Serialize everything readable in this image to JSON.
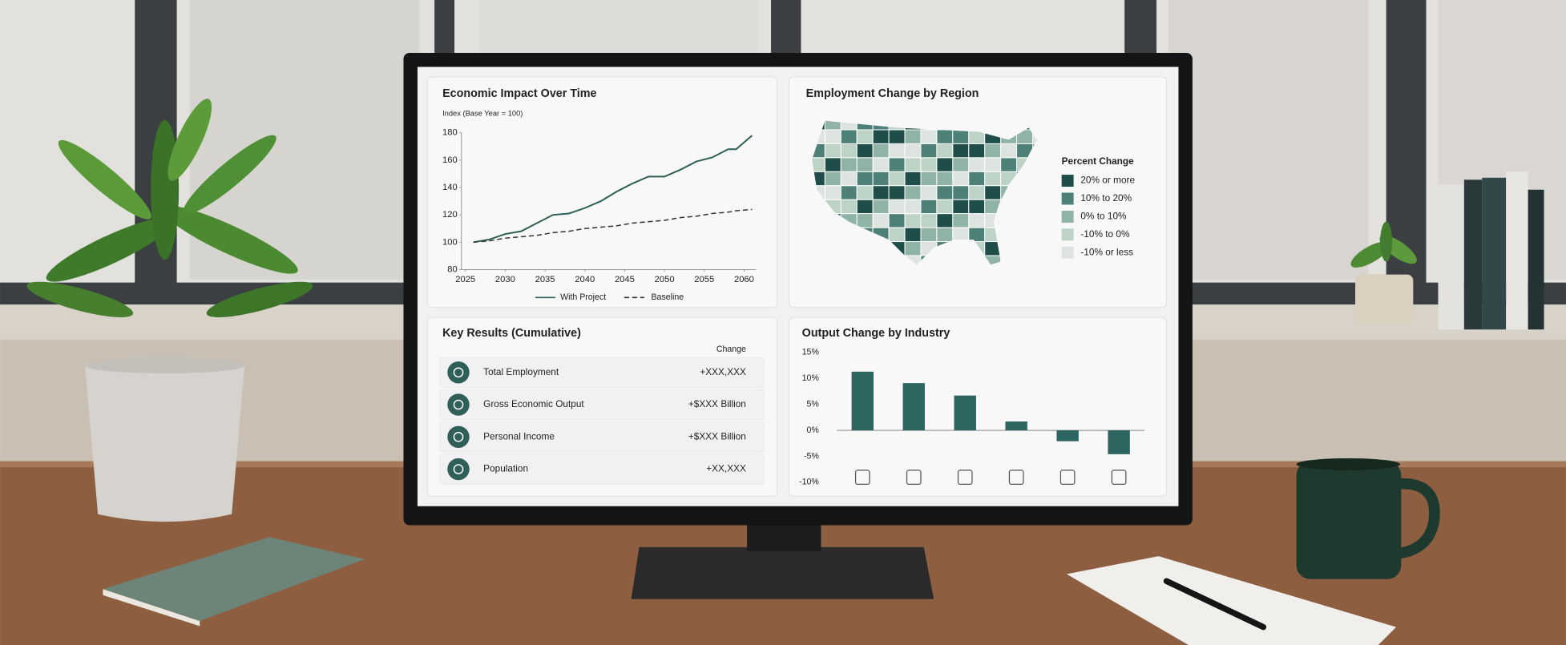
{
  "chart_data": [
    {
      "type": "line",
      "title": "Economic Impact Over Time",
      "y_label": "Index (Base Year = 100)",
      "x": [
        2026,
        2028,
        2030,
        2032,
        2034,
        2036,
        2038,
        2040,
        2042,
        2044,
        2046,
        2048,
        2050,
        2052,
        2054,
        2056,
        2058,
        2059,
        2061
      ],
      "xlim": [
        2024.5,
        2061.5
      ],
      "xticks": [
        2025,
        2030,
        2035,
        2040,
        2045,
        2050,
        2055,
        2060
      ],
      "ylim": [
        80,
        180
      ],
      "yticks": [
        80,
        100,
        120,
        140,
        160,
        180
      ],
      "series": [
        {
          "name": "With Project",
          "color": "#2e5e54",
          "style": "solid",
          "values": [
            100,
            102,
            106,
            108,
            114,
            120,
            121,
            125,
            130,
            137,
            143,
            148,
            148,
            153,
            159,
            162,
            168,
            168,
            178
          ]
        },
        {
          "name": "Baseline",
          "color": "#333333",
          "style": "dashed",
          "values": [
            100,
            101,
            103,
            104,
            105,
            107,
            108,
            110,
            111,
            112,
            114,
            115,
            116,
            118,
            119,
            121,
            122,
            123,
            124
          ]
        }
      ]
    },
    {
      "type": "bar",
      "title": "Output Change by Industry",
      "categories": [
        null,
        null,
        null,
        null,
        null,
        null
      ],
      "values": [
        11.3,
        9.1,
        6.7,
        1.7,
        -2.1,
        -4.6
      ],
      "color": "#2f6560",
      "ylim": [
        -10,
        15
      ],
      "yticks": [
        {
          "value": -10,
          "label": "-10%"
        },
        {
          "value": -5,
          "label": "-5%"
        },
        {
          "value": 0,
          "label": "0%"
        },
        {
          "value": 5,
          "label": "5%"
        },
        {
          "value": 10,
          "label": "10%"
        },
        {
          "value": 15,
          "label": "15%"
        }
      ]
    }
  ],
  "map": {
    "title": "Employment Change by Region",
    "legend_title": "Percent Change",
    "legend": [
      {
        "label": "20% or more",
        "color": "#1f4e4a"
      },
      {
        "label": "10% to 20%",
        "color": "#4d8077"
      },
      {
        "label": "0% to 10%",
        "color": "#8fb3a4"
      },
      {
        "label": "-10% to 0%",
        "color": "#bcd3c6"
      },
      {
        "label": "-10% or less",
        "color": "#dde4e0"
      }
    ]
  },
  "key_results": {
    "title": "Key Results (Cumulative)",
    "column_header": "Change",
    "rows": [
      {
        "label": "Total Employment",
        "value": "+XXX,XXX"
      },
      {
        "label": "Gross Economic Output",
        "value": "+$XXX Billion"
      },
      {
        "label": "Personal Income",
        "value": "+$XXX Billion"
      },
      {
        "label": "Population",
        "value": "+XX,XXX"
      }
    ]
  }
}
